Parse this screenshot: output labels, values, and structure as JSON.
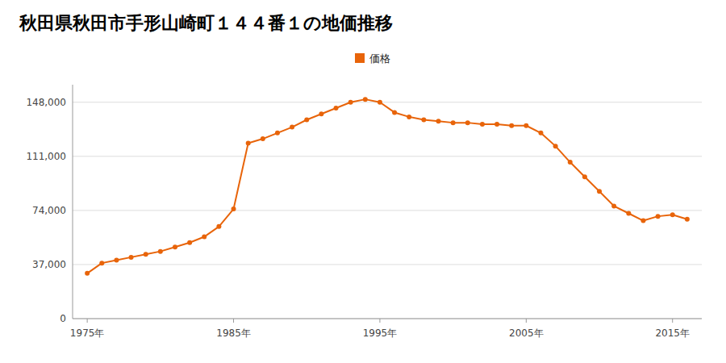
{
  "chart_data": {
    "type": "line",
    "title": "秋田県秋田市手形山崎町１４４番１の地価推移",
    "x": [
      1975,
      1976,
      1977,
      1978,
      1979,
      1980,
      1981,
      1982,
      1983,
      1984,
      1985,
      1986,
      1987,
      1988,
      1989,
      1990,
      1991,
      1992,
      1993,
      1994,
      1995,
      1996,
      1997,
      1998,
      1999,
      2000,
      2001,
      2002,
      2003,
      2004,
      2005,
      2006,
      2007,
      2008,
      2009,
      2010,
      2011,
      2012,
      2013,
      2014,
      2015,
      2016
    ],
    "series": [
      {
        "name": "価格",
        "color": "#e8640a",
        "marker": "circle",
        "line_style": "solid",
        "values": [
          31000,
          38000,
          40000,
          42000,
          44000,
          46000,
          49000,
          52000,
          56000,
          63000,
          75000,
          120000,
          123000,
          127000,
          131000,
          136000,
          140000,
          144000,
          148000,
          150000,
          148000,
          141000,
          138000,
          136000,
          135000,
          134000,
          134000,
          133000,
          133000,
          132000,
          132000,
          127000,
          118000,
          107000,
          97000,
          87000,
          77000,
          72000,
          67000,
          70000,
          71000,
          68000
        ]
      }
    ],
    "xlim": [
      1974,
      2017
    ],
    "xticks": [
      {
        "value": 1975,
        "label": "1975年"
      },
      {
        "value": 1985,
        "label": "1985年"
      },
      {
        "value": 1995,
        "label": "1995年"
      },
      {
        "value": 2005,
        "label": "2005年"
      },
      {
        "value": 2015,
        "label": "2015年"
      }
    ],
    "ylim": [
      0,
      160000
    ],
    "yticks": [
      0,
      {
        "value": 37000,
        "label": "37,000"
      },
      {
        "value": 74000,
        "label": "74,000"
      },
      {
        "value": 111000,
        "label": "111,000"
      },
      {
        "value": 148000,
        "label": "148,000"
      }
    ],
    "grid": true,
    "legend": "top"
  }
}
